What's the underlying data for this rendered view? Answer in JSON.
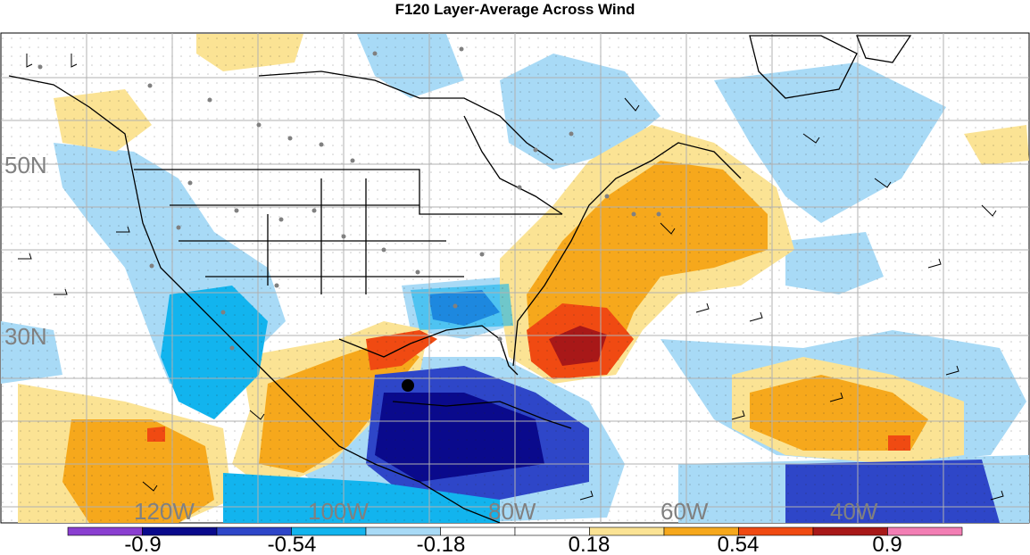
{
  "title": "F120 Layer-Average Across Wind",
  "map": {
    "lat_labels": [
      "50N",
      "30N"
    ],
    "lon_labels": [
      "120W",
      "100W",
      "80W",
      "60W",
      "40W"
    ],
    "label_color": "#808080",
    "land_color": "#ffffff",
    "grid_color": "#b0b0b0",
    "storm_marker": "black dot"
  },
  "colorbar": {
    "colors": [
      "#8a3fd0",
      "#0a0a8c",
      "#2e46c8",
      "#12b4ee",
      "#a8daf6",
      "#ffffff",
      "#ffffff",
      "#fbe394",
      "#f6a81c",
      "#f04a12",
      "#a81818",
      "#f27eb4"
    ],
    "tick_labels": [
      "-0.9",
      "-0.54",
      "-0.18",
      "0.18",
      "0.54",
      "0.9"
    ]
  }
}
